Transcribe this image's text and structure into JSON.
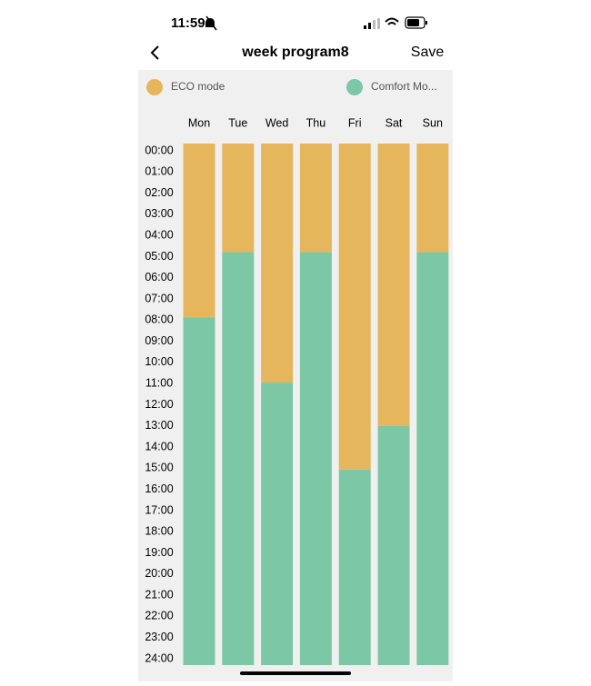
{
  "status_bar": {
    "time": "11:59"
  },
  "header": {
    "title": "week program8",
    "action": "Save"
  },
  "legend": [
    {
      "label": "ECO mode",
      "color": "#e5b65c"
    },
    {
      "label": "Comfort Mo...",
      "color": "#7bc7a6"
    }
  ],
  "days": [
    "Mon",
    "Tue",
    "Wed",
    "Thu",
    "Fri",
    "Sat",
    "Sun"
  ],
  "hours": [
    "00:00",
    "01:00",
    "02:00",
    "03:00",
    "04:00",
    "05:00",
    "06:00",
    "07:00",
    "08:00",
    "09:00",
    "10:00",
    "11:00",
    "12:00",
    "13:00",
    "14:00",
    "15:00",
    "16:00",
    "17:00",
    "18:00",
    "19:00",
    "20:00",
    "21:00",
    "22:00",
    "23:00",
    "24:00"
  ],
  "schedule": {
    "eco_hours": [
      8,
      5,
      11,
      5,
      15,
      13,
      5
    ],
    "comfort_hours": [
      16,
      19,
      13,
      19,
      9,
      11,
      19
    ]
  }
}
